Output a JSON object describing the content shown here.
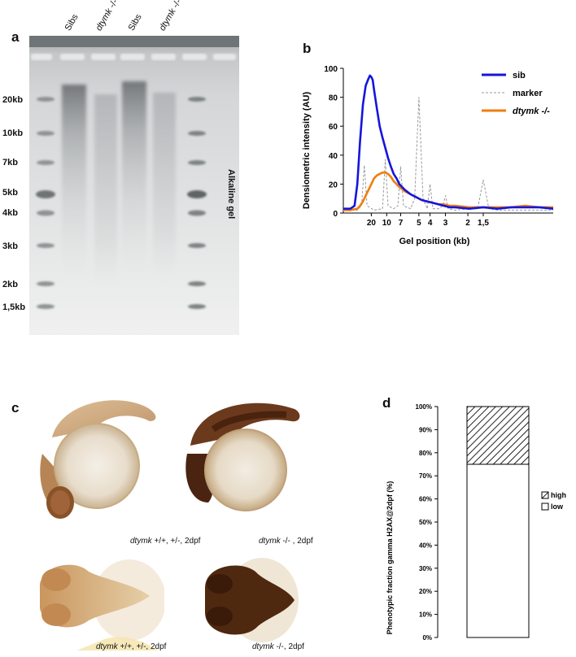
{
  "panel_a": {
    "letter": "a",
    "lane_labels": [
      {
        "gene": "Sibs",
        "suffix": ""
      },
      {
        "gene": "dtymk",
        "suffix": " -/-"
      },
      {
        "gene": "Sibs",
        "suffix": ""
      },
      {
        "gene": "dtymk",
        "suffix": " -/-"
      }
    ],
    "size_labels": [
      "20kb",
      "10kb",
      "7kb",
      "5kb",
      "4kb",
      "3kb",
      "2kb",
      "1,5kb"
    ],
    "side_label": "Alkaline gel"
  },
  "panel_b": {
    "letter": "b",
    "chart_data": {
      "type": "line",
      "xlabel": "Gel position (kb)",
      "ylabel": "Densiometric intensity (AU)",
      "ylim": [
        0,
        100
      ],
      "yticks": [
        0,
        20,
        40,
        60,
        80,
        100
      ],
      "xticks": [
        {
          "label": "20",
          "pos": 20
        },
        {
          "label": "10",
          "pos": 31
        },
        {
          "label": "7",
          "pos": 41
        },
        {
          "label": "5",
          "pos": 54
        },
        {
          "label": "4",
          "pos": 62
        },
        {
          "label": "3",
          "pos": 73
        },
        {
          "label": "2",
          "pos": 89
        },
        {
          "label": "1,5",
          "pos": 100
        }
      ],
      "xlim": [
        0,
        150
      ],
      "legend_position": "right",
      "series": [
        {
          "name": "sib",
          "color": "#1515dd",
          "style": "solid",
          "x": [
            0,
            5,
            8,
            10,
            12,
            14,
            16,
            18,
            19,
            20,
            21,
            22,
            24,
            26,
            28,
            30,
            32,
            34,
            36,
            38,
            40,
            44,
            48,
            52,
            56,
            60,
            64,
            68,
            72,
            76,
            80,
            90,
            100,
            110,
            120,
            130,
            140,
            150
          ],
          "y": [
            3,
            3,
            5,
            20,
            50,
            75,
            88,
            93,
            95,
            94,
            92,
            85,
            72,
            60,
            52,
            45,
            38,
            32,
            27,
            24,
            20,
            16,
            13,
            11,
            9,
            8,
            7,
            6,
            5,
            4,
            4,
            3,
            4,
            3,
            4,
            4,
            4,
            3
          ]
        },
        {
          "name": "marker",
          "color": "#999999",
          "style": "dashed",
          "x": [
            0,
            10,
            13,
            15,
            17,
            22,
            28,
            30,
            32,
            36,
            39,
            41,
            43,
            48,
            51,
            54,
            57,
            60,
            62,
            64,
            68,
            71,
            73,
            75,
            80,
            90,
            96,
            100,
            104,
            110,
            120,
            150
          ],
          "y": [
            2,
            2,
            5,
            33,
            5,
            2,
            3,
            37,
            5,
            3,
            5,
            32,
            5,
            3,
            10,
            80,
            10,
            3,
            20,
            3,
            3,
            5,
            12,
            3,
            2,
            3,
            3,
            23,
            3,
            2,
            2,
            2
          ]
        },
        {
          "name": "dtymk -/-",
          "color": "#f07d0c",
          "style": "solid",
          "x": [
            0,
            5,
            10,
            12,
            14,
            16,
            18,
            20,
            22,
            24,
            26,
            28,
            30,
            32,
            34,
            36,
            38,
            40,
            44,
            48,
            52,
            56,
            60,
            64,
            68,
            72,
            76,
            80,
            90,
            100,
            110,
            120,
            130,
            140,
            150
          ],
          "y": [
            2,
            2,
            3,
            5,
            8,
            12,
            16,
            20,
            24,
            26,
            27,
            28,
            28,
            27,
            25,
            22,
            20,
            18,
            15,
            13,
            11,
            9,
            8,
            7,
            6,
            6,
            5,
            5,
            4,
            4,
            4,
            4,
            5,
            4,
            4
          ]
        }
      ]
    }
  },
  "panel_c": {
    "letter": "c",
    "captions": [
      {
        "gene": "dtymk",
        "text": " +/+, +/-, 2dpf"
      },
      {
        "gene": "dtymk",
        "text": " -/- , 2dpf"
      },
      {
        "gene": "dtymk",
        "text": " +/+, +/-, 2dpf"
      },
      {
        "gene": "dtymk",
        "text": " -/-, 2dpf"
      }
    ]
  },
  "panel_d": {
    "letter": "d",
    "chart_data": {
      "type": "bar",
      "stacked": true,
      "ylabel": "Phenotypic fraction gamma H2AX@2dpf (%)",
      "ylim": [
        0,
        100
      ],
      "yticks": [
        "0%",
        "10%",
        "20%",
        "30%",
        "40%",
        "50%",
        "60%",
        "70%",
        "80%",
        "90%",
        "100%"
      ],
      "categories": [
        ""
      ],
      "legend_position": "right",
      "series": [
        {
          "name": "low",
          "values": [
            75
          ],
          "fill": "white"
        },
        {
          "name": "high",
          "values": [
            25
          ],
          "fill": "hatched"
        }
      ]
    }
  }
}
